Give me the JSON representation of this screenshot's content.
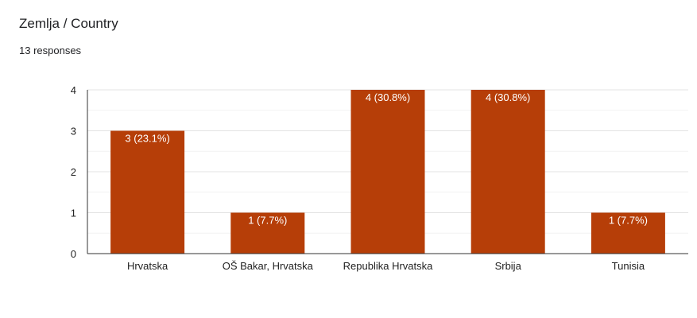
{
  "header": {
    "title": "Zemlja / Country",
    "responses": "13 responses"
  },
  "colors": {
    "bar": "#b63e08",
    "grid": "#e6e6e6",
    "axis": "#333333"
  },
  "chart_data": {
    "type": "bar",
    "title": "",
    "xlabel": "",
    "ylabel": "",
    "categories": [
      "Hrvatska",
      "OŠ Bakar, Hrvatska",
      "Republika Hrvatska",
      "Srbija",
      "Tunisia"
    ],
    "values": [
      3,
      1,
      4,
      4,
      1
    ],
    "data_labels": [
      "3 (23.1%)",
      "1 (7.7%)",
      "4 (30.8%)",
      "4 (30.8%)",
      "1 (7.7%)"
    ],
    "yticks": [
      "0",
      "1",
      "2",
      "3",
      "4"
    ],
    "ylim": [
      0,
      4
    ],
    "grid": true,
    "legend": "none"
  }
}
